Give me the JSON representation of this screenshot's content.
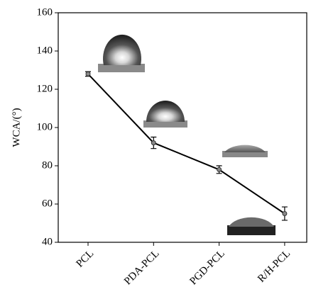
{
  "chart_data": {
    "type": "line",
    "ylabel": "WCA/(°)",
    "categories": [
      "PCL",
      "PDA-PCL",
      "PGD-PCL",
      "R/H-PCL"
    ],
    "values": [
      128,
      92,
      78,
      55
    ],
    "errors": [
      1.2,
      3,
      2,
      3.5
    ],
    "color": "#000000",
    "ylim": [
      40,
      160
    ],
    "yticks": [
      40,
      60,
      80,
      100,
      120,
      140,
      160
    ],
    "grid": false
  }
}
